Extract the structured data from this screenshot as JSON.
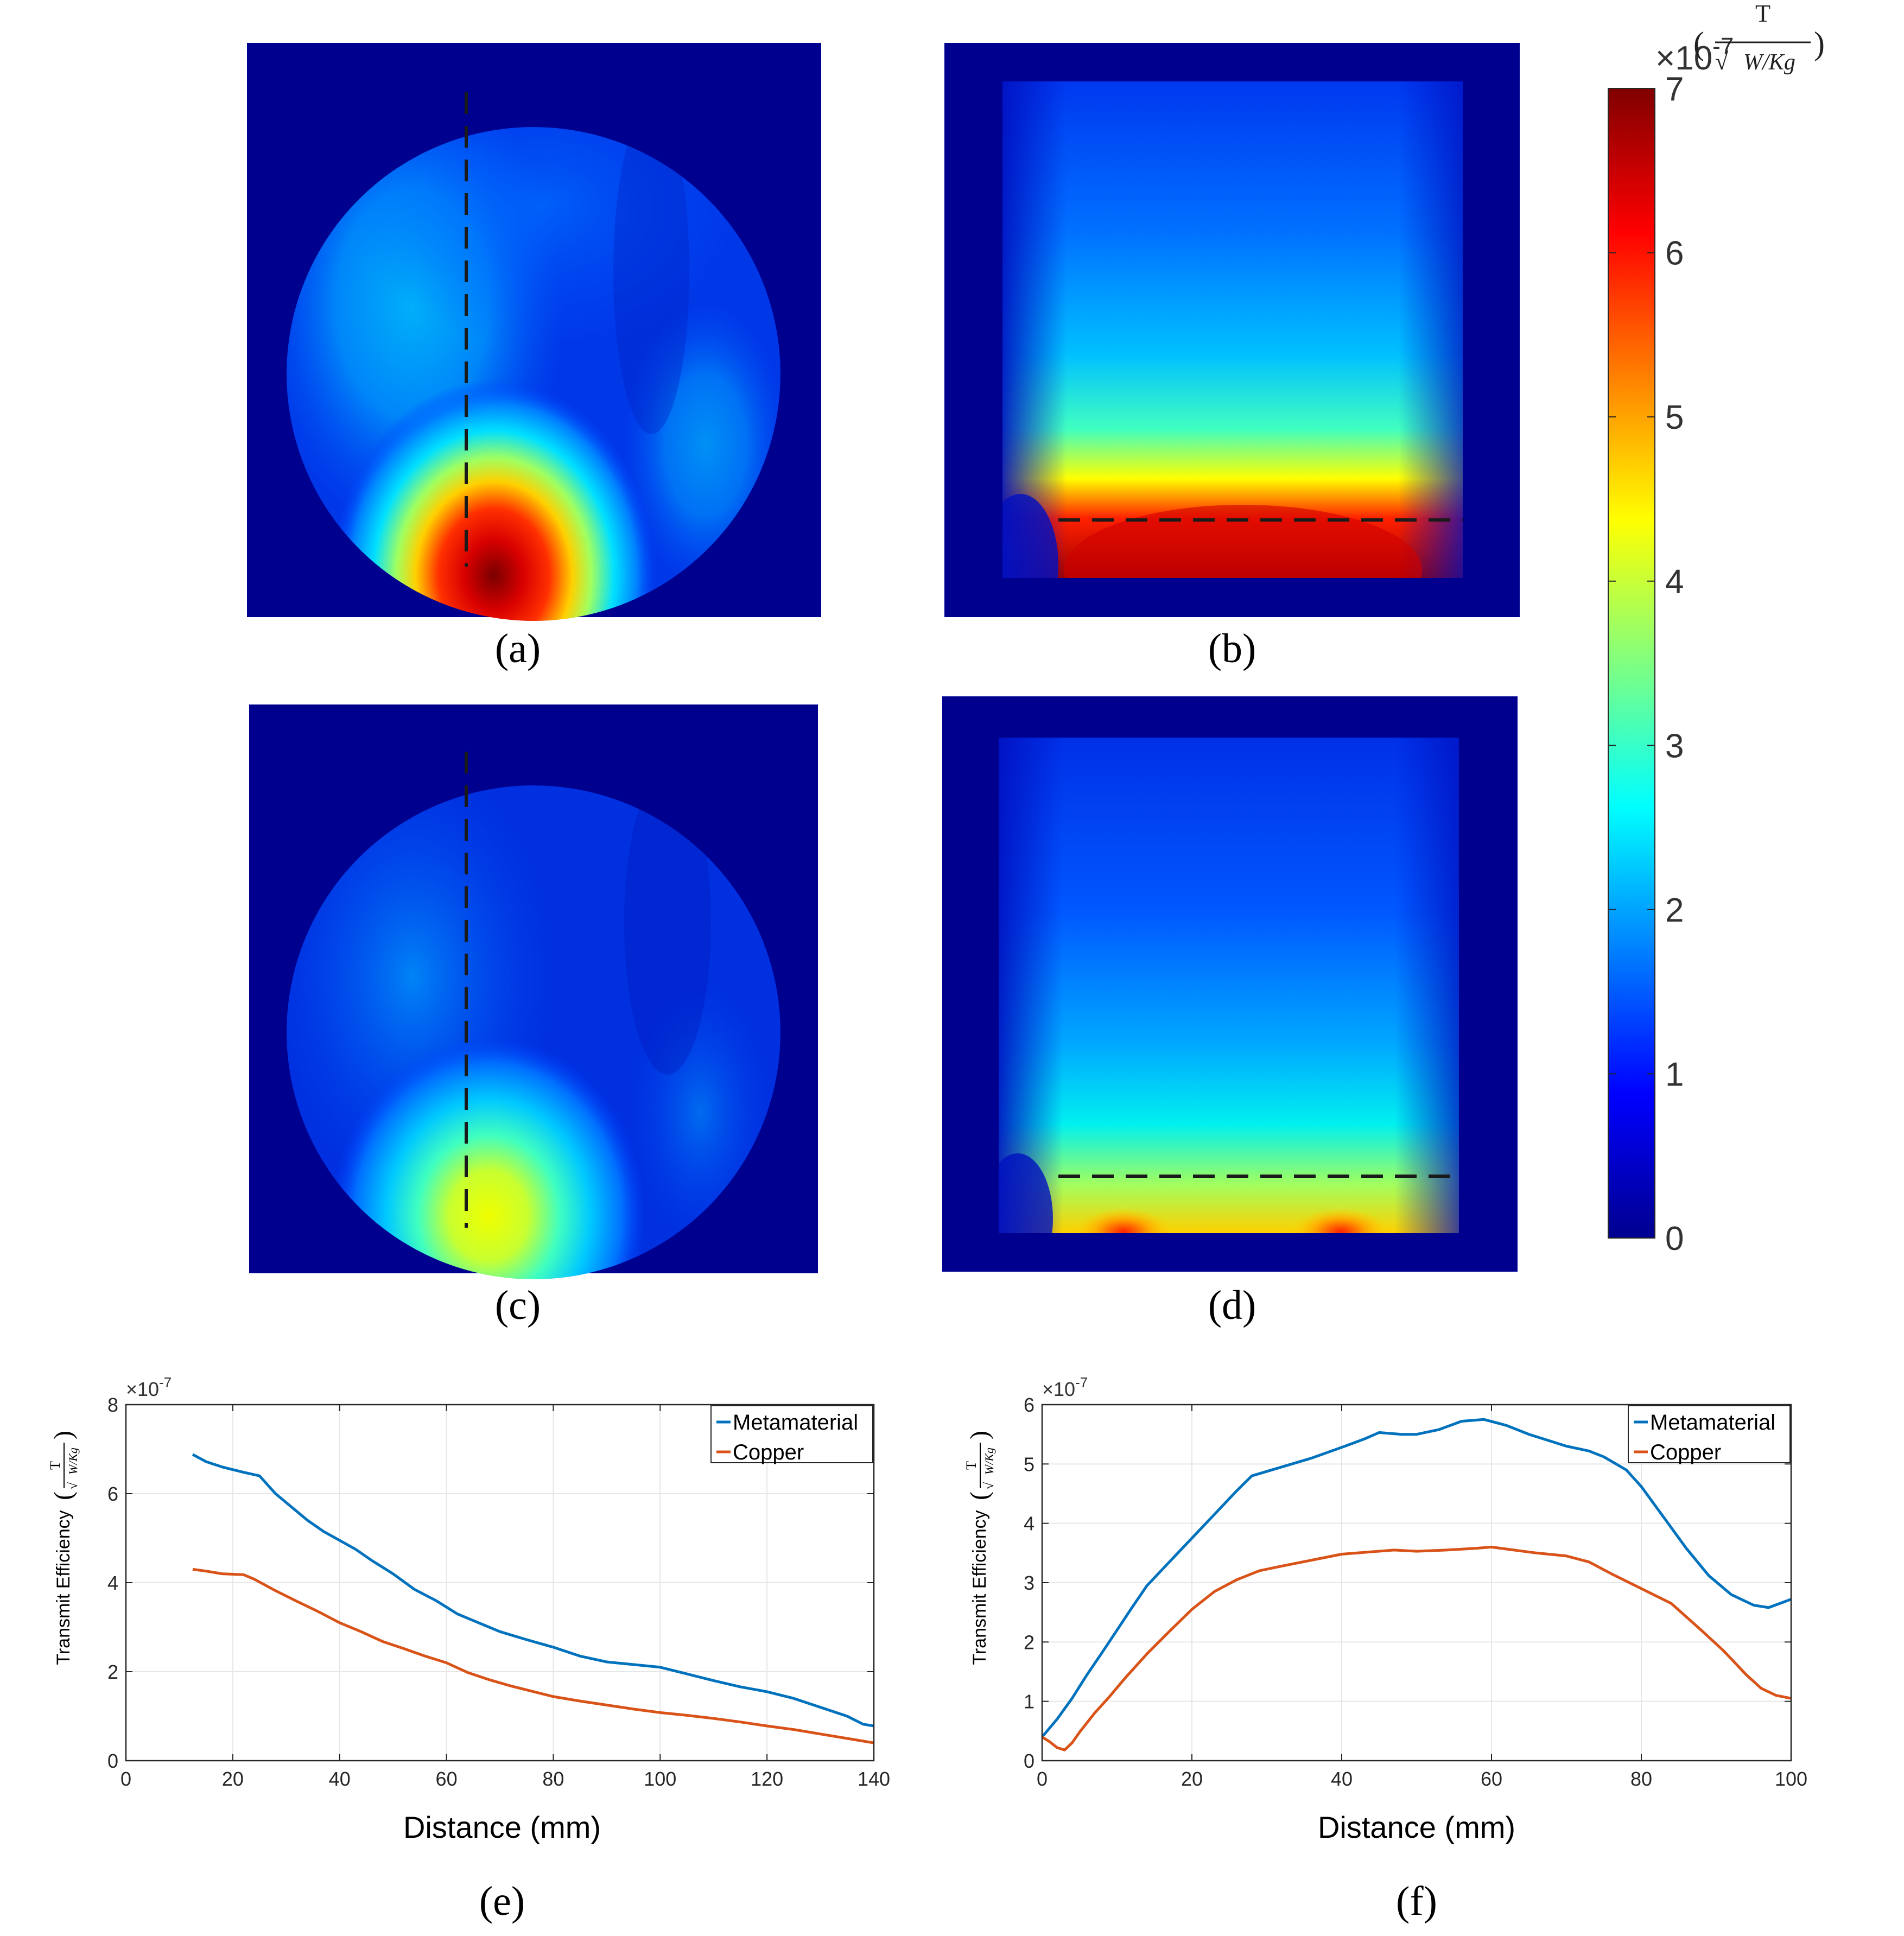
{
  "colors": {
    "field_background": "#00008f",
    "metamaterial": "#0072bd",
    "copper": "#d95319",
    "grid": "#e6e6e6",
    "axis": "#262626",
    "dash": "#1a1a1a"
  },
  "panels": {
    "a": {
      "label": "(a)"
    },
    "b": {
      "label": "(b)"
    },
    "c": {
      "label": "(c)"
    },
    "d": {
      "label": "(d)"
    },
    "e": {
      "label": "(e)"
    },
    "f": {
      "label": "(f)"
    }
  },
  "colorbar": {
    "ticks": [
      "0",
      "1",
      "2",
      "3",
      "4",
      "5",
      "6",
      "7"
    ],
    "range": [
      0,
      7
    ],
    "multiplier": "×10",
    "exponent": "-7",
    "unit_numerator": "T",
    "unit_denominator": "W/Kg",
    "colormap": "jet"
  },
  "chart_data": [
    {
      "id": "e",
      "type": "line",
      "xlabel": "Distance (mm)",
      "ylabel": "Transmit Efficiency",
      "ylabel_unit_numerator": "T",
      "ylabel_unit_denominator": "W/Kg",
      "scale_multiplier": "×10",
      "scale_exponent": "-7",
      "xlim": [
        0,
        140
      ],
      "ylim": [
        0,
        8
      ],
      "xticks": [
        0,
        20,
        40,
        60,
        80,
        100,
        120,
        140
      ],
      "yticks": [
        0,
        2,
        4,
        6,
        8
      ],
      "grid": true,
      "legend_position": "top-right",
      "series": [
        {
          "name": "Metamaterial",
          "color": "#0072bd",
          "x": [
            12.5,
            15,
            18,
            22,
            25,
            28,
            31,
            34,
            37,
            40,
            43,
            46,
            50,
            54,
            58,
            62,
            66,
            70,
            75,
            80,
            85,
            90,
            95,
            100,
            105,
            110,
            115,
            120,
            125,
            130,
            135,
            138,
            140
          ],
          "y": [
            6.88,
            6.72,
            6.6,
            6.48,
            6.4,
            6.0,
            5.7,
            5.4,
            5.15,
            4.95,
            4.75,
            4.5,
            4.2,
            3.85,
            3.6,
            3.3,
            3.1,
            2.9,
            2.72,
            2.55,
            2.35,
            2.22,
            2.16,
            2.1,
            1.95,
            1.8,
            1.66,
            1.55,
            1.4,
            1.2,
            1.0,
            0.82,
            0.78
          ]
        },
        {
          "name": "Copper",
          "color": "#d95319",
          "x": [
            12.5,
            15,
            18,
            22,
            24,
            28,
            32,
            36,
            40,
            44,
            48,
            52,
            56,
            60,
            64,
            68,
            72,
            76,
            80,
            85,
            90,
            95,
            100,
            105,
            110,
            115,
            120,
            125,
            130,
            135,
            140
          ],
          "y": [
            4.3,
            4.26,
            4.2,
            4.18,
            4.08,
            3.82,
            3.58,
            3.35,
            3.1,
            2.9,
            2.68,
            2.52,
            2.35,
            2.2,
            1.98,
            1.82,
            1.68,
            1.56,
            1.44,
            1.34,
            1.25,
            1.16,
            1.08,
            1.02,
            0.95,
            0.87,
            0.78,
            0.7,
            0.6,
            0.5,
            0.4
          ]
        }
      ]
    },
    {
      "id": "f",
      "type": "line",
      "xlabel": "Distance (mm)",
      "ylabel": "Transmit Efficiency",
      "ylabel_unit_numerator": "T",
      "ylabel_unit_denominator": "W/Kg",
      "scale_multiplier": "×10",
      "scale_exponent": "-7",
      "xlim": [
        0,
        100
      ],
      "ylim": [
        0,
        6
      ],
      "xticks": [
        0,
        20,
        40,
        60,
        80,
        100
      ],
      "yticks": [
        0,
        1,
        2,
        3,
        4,
        5,
        6
      ],
      "grid": true,
      "legend_position": "top-right",
      "series": [
        {
          "name": "Metamaterial",
          "color": "#0072bd",
          "x": [
            0,
            2,
            4,
            6,
            8,
            10,
            12,
            14,
            17,
            20,
            23,
            26,
            28,
            32,
            36,
            40,
            43,
            45,
            48,
            50,
            53,
            56,
            59,
            62,
            65,
            68,
            70,
            73,
            75,
            78,
            80,
            83,
            86,
            89,
            92,
            95,
            97,
            100
          ],
          "y": [
            0.4,
            0.7,
            1.05,
            1.45,
            1.82,
            2.2,
            2.58,
            2.95,
            3.35,
            3.75,
            4.15,
            4.55,
            4.8,
            4.95,
            5.1,
            5.28,
            5.42,
            5.53,
            5.5,
            5.5,
            5.58,
            5.72,
            5.75,
            5.65,
            5.5,
            5.38,
            5.3,
            5.22,
            5.12,
            4.9,
            4.62,
            4.1,
            3.58,
            3.12,
            2.8,
            2.62,
            2.58,
            2.72
          ]
        },
        {
          "name": "Copper",
          "color": "#d95319",
          "x": [
            0,
            1,
            2,
            3,
            4,
            5,
            7,
            9,
            11,
            14,
            17,
            20,
            23,
            26,
            29,
            32,
            36,
            40,
            44,
            47,
            50,
            54,
            58,
            60,
            63,
            66,
            70,
            73,
            76,
            80,
            84,
            88,
            91,
            94,
            96,
            98,
            100
          ],
          "y": [
            0.4,
            0.32,
            0.22,
            0.18,
            0.3,
            0.48,
            0.8,
            1.08,
            1.38,
            1.8,
            2.18,
            2.55,
            2.85,
            3.05,
            3.2,
            3.28,
            3.38,
            3.48,
            3.52,
            3.55,
            3.53,
            3.55,
            3.58,
            3.6,
            3.55,
            3.5,
            3.45,
            3.35,
            3.15,
            2.9,
            2.65,
            2.2,
            1.85,
            1.45,
            1.22,
            1.1,
            1.05
          ]
        }
      ]
    }
  ]
}
